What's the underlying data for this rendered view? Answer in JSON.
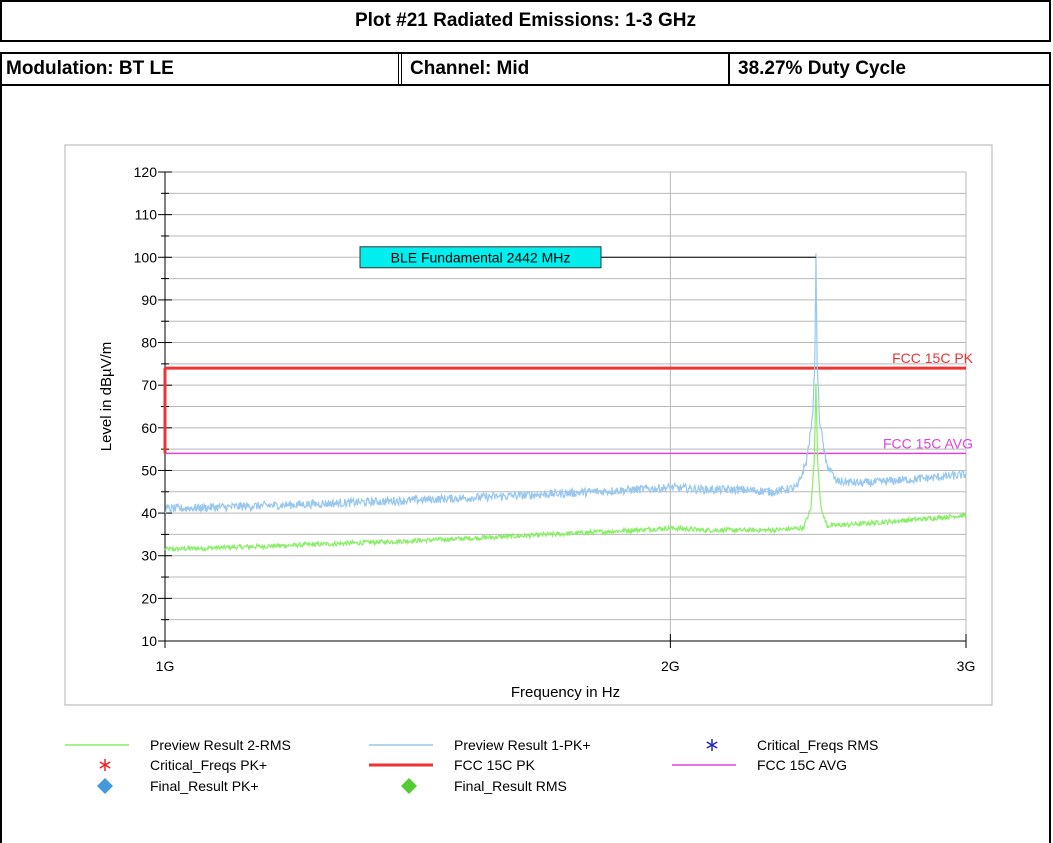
{
  "header": {
    "title": "Plot #21 Radiated Emissions: 1-3 GHz",
    "modulation": "Modulation: BT LE",
    "channel": "Channel: Mid",
    "duty_cycle": "38.27% Duty Cycle"
  },
  "chart_data": {
    "type": "line",
    "xlabel": "Frequency in Hz",
    "ylabel": "Level in dBµV/m",
    "x_scale": "log",
    "xlim": [
      1000000000,
      3000000000
    ],
    "ylim": [
      10,
      120
    ],
    "x_ticks": [
      {
        "value": 1000000000,
        "label": "1G"
      },
      {
        "value": 2000000000,
        "label": "2G"
      },
      {
        "value": 3000000000,
        "label": "3G"
      }
    ],
    "y_ticks": [
      10,
      20,
      30,
      40,
      50,
      60,
      70,
      80,
      90,
      100,
      110,
      120
    ],
    "grid": true,
    "colors": {
      "pk": "#99c8ee",
      "rms": "#88ee66",
      "limit_pk": "#ee3333",
      "limit_avg": "#dd44dd",
      "annotation_bg": "#00eeee",
      "crit_rms": "#2222cc",
      "crit_pk": "#ee2222",
      "final_pk": "#4499dd",
      "final_rms": "#55cc33"
    },
    "series": [
      {
        "name": "Preview Result 1-PK+",
        "x": [
          1000000000,
          1100000000,
          1200000000,
          1300000000,
          1400000000,
          1500000000,
          1600000000,
          1700000000,
          1800000000,
          1900000000,
          2000000000,
          2100000000,
          2200000000,
          2300000000,
          2380000000,
          2410000000,
          2430000000,
          2438000000,
          2442000000,
          2446000000,
          2454000000,
          2475000000,
          2510000000,
          2600000000,
          2700000000,
          2800000000,
          2900000000,
          3000000000
        ],
        "y": [
          41,
          41.5,
          42,
          42.5,
          43,
          43.5,
          44,
          44.5,
          45,
          45.5,
          46,
          45.5,
          45.5,
          45,
          46,
          52,
          62,
          75,
          100,
          75,
          62,
          52,
          47.5,
          47,
          47.5,
          48,
          48.5,
          49
        ]
      },
      {
        "name": "Preview Result 2-RMS",
        "x": [
          1000000000,
          1100000000,
          1200000000,
          1300000000,
          1400000000,
          1500000000,
          1600000000,
          1700000000,
          1800000000,
          1900000000,
          2000000000,
          2100000000,
          2200000000,
          2300000000,
          2400000000,
          2425000000,
          2436000000,
          2442000000,
          2448000000,
          2459000000,
          2480000000,
          2600000000,
          2700000000,
          2800000000,
          2900000000,
          3000000000
        ],
        "y": [
          31.5,
          32,
          32.5,
          33,
          33.5,
          34,
          34.5,
          35,
          35.5,
          36,
          36.5,
          36,
          36,
          36,
          36.5,
          41,
          52,
          70,
          52,
          41,
          37,
          37.5,
          38,
          38.5,
          39,
          39.5
        ]
      }
    ],
    "limits": [
      {
        "name": "FCC 15C PK",
        "x": [
          1000000000,
          3000000000
        ],
        "y": [
          74,
          74
        ],
        "label": "FCC 15C PK"
      },
      {
        "name": "FCC 15C AVG",
        "x": [
          1000000000,
          3000000000
        ],
        "y": [
          54,
          54
        ],
        "label": "FCC 15C AVG"
      }
    ],
    "annotation": {
      "text": "BLE Fundamental 2442 MHz",
      "x": 2442000000,
      "y": 100
    },
    "legend": {
      "placement": "bottom",
      "entries": [
        {
          "label": "Preview Result 2-RMS",
          "symbol": "line",
          "color": "#88ee66"
        },
        {
          "label": "Preview Result 1-PK+",
          "symbol": "line",
          "color": "#99c8ee"
        },
        {
          "label": "Critical_Freqs RMS",
          "symbol": "star",
          "color": "#2222cc"
        },
        {
          "label": "Critical_Freqs PK+",
          "symbol": "star",
          "color": "#ee2222"
        },
        {
          "label": "FCC 15C PK",
          "symbol": "thick-line",
          "color": "#ee3333"
        },
        {
          "label": "FCC 15C AVG",
          "symbol": "line",
          "color": "#dd44dd"
        },
        {
          "label": "Final_Result PK+",
          "symbol": "diamond",
          "color": "#4499dd"
        },
        {
          "label": "Final_Result RMS",
          "symbol": "diamond",
          "color": "#55cc33"
        }
      ]
    }
  }
}
